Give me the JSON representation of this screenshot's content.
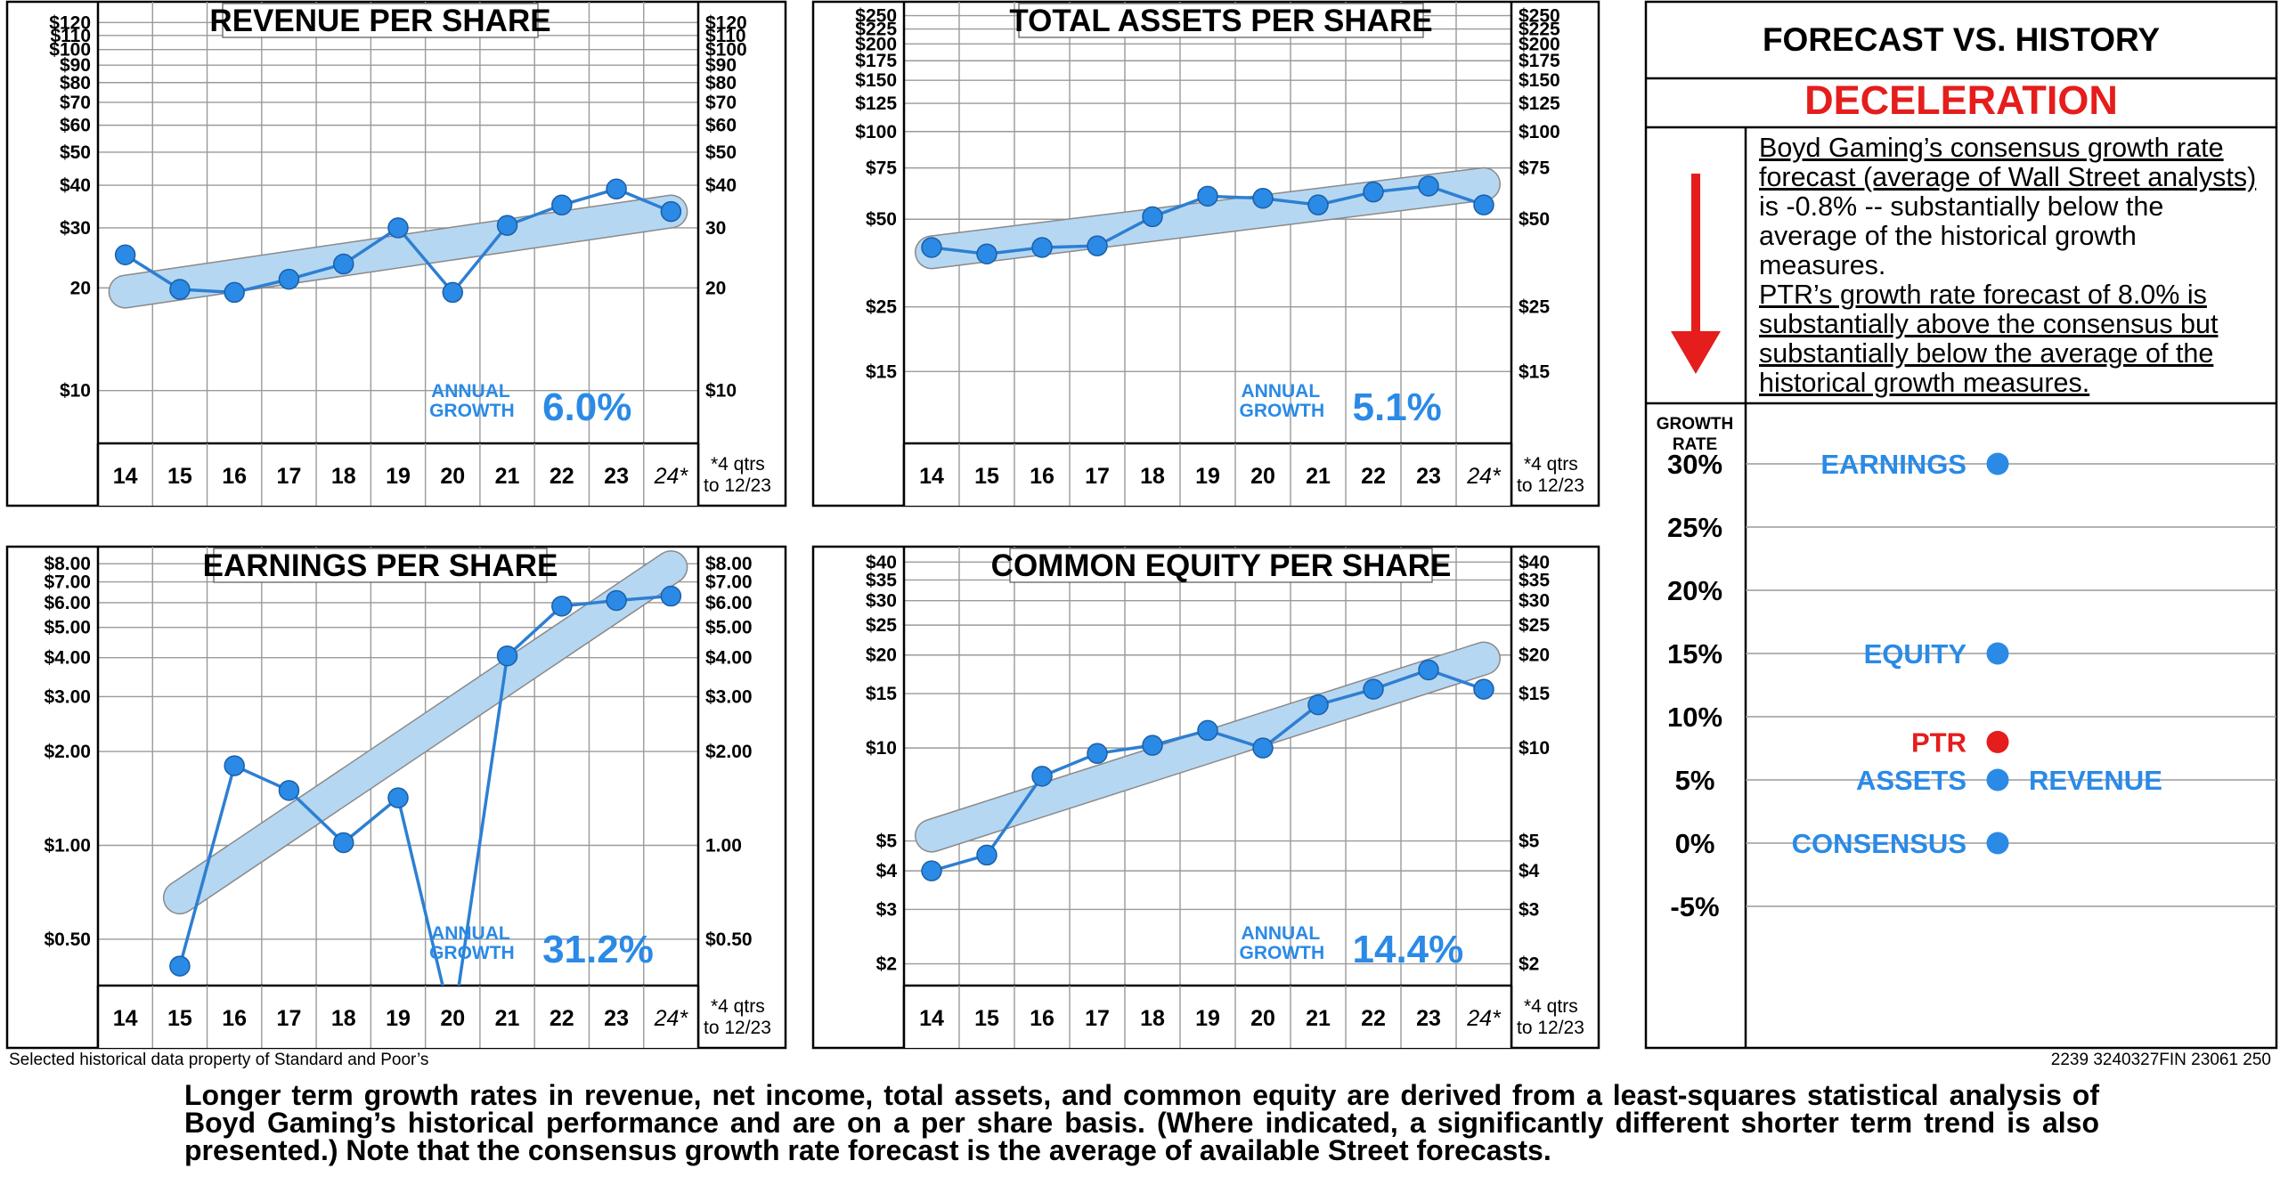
{
  "chart_data": [
    {
      "type": "line",
      "title": "REVENUE PER SHARE",
      "y_scale": "log",
      "x": [
        "14",
        "15",
        "16",
        "17",
        "18",
        "19",
        "20",
        "21",
        "22",
        "23",
        "24*"
      ],
      "values": [
        25.0,
        19.8,
        19.4,
        21.2,
        23.5,
        30.0,
        19.4,
        30.5,
        35.0,
        39.0,
        33.5
      ],
      "trend": [
        19.5,
        33.5
      ],
      "growth_label": "ANNUAL GROWTH",
      "growth_label_lines": [
        "ANNUAL",
        "GROWTH"
      ],
      "growth_value": "6.0%",
      "ylim": [
        7,
        130
      ],
      "ticks": [
        {
          "v": 120,
          "l": "$120"
        },
        {
          "v": 110,
          "l": "$110"
        },
        {
          "v": 100,
          "l": "$100"
        },
        {
          "v": 90,
          "l": "$90"
        },
        {
          "v": 80,
          "l": "$80"
        },
        {
          "v": 70,
          "l": "$70"
        },
        {
          "v": 60,
          "l": "$60"
        },
        {
          "v": 50,
          "l": "$50"
        },
        {
          "v": 40,
          "l": "$40"
        },
        {
          "v": 30,
          "l": "$30"
        },
        {
          "v": 20,
          "l": "20"
        },
        {
          "v": 10,
          "l": "$10"
        }
      ],
      "right_ticks": [
        {
          "v": 120,
          "l": "$120"
        },
        {
          "v": 110,
          "l": "$110"
        },
        {
          "v": 100,
          "l": "$100"
        },
        {
          "v": 90,
          "l": "$90"
        },
        {
          "v": 80,
          "l": "$80"
        },
        {
          "v": 70,
          "l": "$70"
        },
        {
          "v": 60,
          "l": "$60"
        },
        {
          "v": 50,
          "l": "$50"
        },
        {
          "v": 40,
          "l": "$40"
        },
        {
          "v": 30,
          "l": "30"
        },
        {
          "v": 20,
          "l": "20"
        },
        {
          "v": 10,
          "l": "$10"
        }
      ],
      "note_lines": [
        "*4 qtrs",
        "to 12/23"
      ],
      "grid": true
    },
    {
      "type": "line",
      "title": "TOTAL ASSETS PER SHARE",
      "y_scale": "log",
      "x": [
        "14",
        "15",
        "16",
        "17",
        "18",
        "19",
        "20",
        "21",
        "22",
        "23",
        "24*"
      ],
      "values": [
        40.0,
        38.0,
        40.0,
        40.5,
        51.0,
        60.0,
        59.0,
        56.0,
        62.0,
        65.0,
        56.0
      ],
      "trend": [
        38.5,
        66.0
      ],
      "growth_label": "ANNUAL GROWTH",
      "growth_label_lines": [
        "ANNUAL",
        "GROWTH"
      ],
      "growth_value": "5.1%",
      "ylim": [
        8.5,
        260
      ],
      "ticks": [
        {
          "v": 250,
          "l": "$250"
        },
        {
          "v": 225,
          "l": "$225"
        },
        {
          "v": 200,
          "l": "$200"
        },
        {
          "v": 175,
          "l": "$175"
        },
        {
          "v": 150,
          "l": "$150"
        },
        {
          "v": 125,
          "l": "$125"
        },
        {
          "v": 100,
          "l": "$100"
        },
        {
          "v": 75,
          "l": "$75"
        },
        {
          "v": 50,
          "l": "$50"
        },
        {
          "v": 25,
          "l": "$25"
        },
        {
          "v": 15,
          "l": "$15"
        }
      ],
      "right_ticks": [
        {
          "v": 250,
          "l": "$250"
        },
        {
          "v": 225,
          "l": "$225"
        },
        {
          "v": 200,
          "l": "$200"
        },
        {
          "v": 175,
          "l": "$175"
        },
        {
          "v": 150,
          "l": "$150"
        },
        {
          "v": 125,
          "l": "$125"
        },
        {
          "v": 100,
          "l": "$100"
        },
        {
          "v": 75,
          "l": "$75"
        },
        {
          "v": 50,
          "l": "$50"
        },
        {
          "v": 25,
          "l": "$25"
        },
        {
          "v": 15,
          "l": "$15"
        }
      ],
      "note_lines": [
        "*4 qtrs",
        "to 12/23"
      ],
      "grid": true
    },
    {
      "type": "line",
      "title": "EARNINGS PER SHARE",
      "y_scale": "log",
      "x": [
        "14",
        "15",
        "16",
        "17",
        "18",
        "19",
        "20",
        "21",
        "22",
        "23",
        "24*"
      ],
      "values": [
        null,
        0.41,
        1.8,
        1.5,
        1.02,
        1.42,
        0.26,
        4.05,
        5.85,
        6.1,
        6.3
      ],
      "trend": [
        0.68,
        7.8
      ],
      "growth_label": "ANNUAL GROWTH",
      "growth_label_lines": [
        "ANNUAL",
        "GROWTH"
      ],
      "growth_value": "31.2%",
      "ylim": [
        0.355,
        8.5
      ],
      "ticks": [
        {
          "v": 8,
          "l": "$8.00"
        },
        {
          "v": 7,
          "l": "$7.00"
        },
        {
          "v": 6,
          "l": "$6.00"
        },
        {
          "v": 5,
          "l": "$5.00"
        },
        {
          "v": 4,
          "l": "$4.00"
        },
        {
          "v": 3,
          "l": "$3.00"
        },
        {
          "v": 2,
          "l": "$2.00"
        },
        {
          "v": 1,
          "l": "$1.00"
        },
        {
          "v": 0.5,
          "l": "$0.50"
        }
      ],
      "right_ticks": [
        {
          "v": 8,
          "l": "$8.00"
        },
        {
          "v": 7,
          "l": "$7.00"
        },
        {
          "v": 6,
          "l": "$6.00"
        },
        {
          "v": 5,
          "l": "$5.00"
        },
        {
          "v": 4,
          "l": "$4.00"
        },
        {
          "v": 3,
          "l": "$3.00"
        },
        {
          "v": 2,
          "l": "$2.00"
        },
        {
          "v": 1,
          "l": "1.00"
        },
        {
          "v": 0.5,
          "l": "$0.50"
        }
      ],
      "note_lines": [
        "*4 qtrs",
        "to 12/23"
      ],
      "grid": true
    },
    {
      "type": "line",
      "title": "COMMON EQUITY PER SHARE",
      "y_scale": "log",
      "x": [
        "14",
        "15",
        "16",
        "17",
        "18",
        "19",
        "20",
        "21",
        "22",
        "23",
        "24*"
      ],
      "values": [
        4.0,
        4.5,
        8.1,
        9.6,
        10.2,
        11.4,
        10.0,
        13.8,
        15.5,
        17.9,
        15.5
      ],
      "trend": [
        5.2,
        19.5
      ],
      "growth_label": "ANNUAL GROWTH",
      "growth_label_lines": [
        "ANNUAL",
        "GROWTH"
      ],
      "growth_value": "14.4%",
      "ylim": [
        1.7,
        42
      ],
      "ticks": [
        {
          "v": 40,
          "l": "$40"
        },
        {
          "v": 35,
          "l": "$35"
        },
        {
          "v": 30,
          "l": "$30"
        },
        {
          "v": 25,
          "l": "$25"
        },
        {
          "v": 20,
          "l": "$20"
        },
        {
          "v": 15,
          "l": "$15"
        },
        {
          "v": 10,
          "l": "$10"
        },
        {
          "v": 5,
          "l": "$5"
        },
        {
          "v": 4,
          "l": "$4"
        },
        {
          "v": 3,
          "l": "$3"
        },
        {
          "v": 2,
          "l": "$2"
        }
      ],
      "right_ticks": [
        {
          "v": 40,
          "l": "$40"
        },
        {
          "v": 35,
          "l": "$35"
        },
        {
          "v": 30,
          "l": "$30"
        },
        {
          "v": 25,
          "l": "$25"
        },
        {
          "v": 20,
          "l": "$20"
        },
        {
          "v": 15,
          "l": "$15"
        },
        {
          "v": 10,
          "l": "$10"
        },
        {
          "v": 5,
          "l": "$5"
        },
        {
          "v": 4,
          "l": "$4"
        },
        {
          "v": 3,
          "l": "$3"
        },
        {
          "v": 2,
          "l": "$2"
        }
      ],
      "note_lines": [
        "*4 qtrs",
        "to 12/23"
      ],
      "grid": true
    },
    {
      "type": "scatter",
      "title": "FORECAST VS. HISTORY",
      "subtitle": "DECELERATION",
      "ylabel": "GROWTH RATE",
      "ylabel_lines": [
        "GROWTH",
        "RATE"
      ],
      "y_ticks": [
        {
          "v": 30,
          "l": "30%"
        },
        {
          "v": 25,
          "l": "25%"
        },
        {
          "v": 20,
          "l": "20%"
        },
        {
          "v": 15,
          "l": "15%"
        },
        {
          "v": 10,
          "l": "10%"
        },
        {
          "v": 5,
          "l": "5%"
        },
        {
          "v": 0,
          "l": "0%"
        },
        {
          "v": -5,
          "l": "-5%"
        }
      ],
      "points": [
        {
          "label": "EARNINGS",
          "value": 31.2,
          "label_side": "left",
          "color": "#2a8ae6"
        },
        {
          "label": "EQUITY",
          "value": 14.4,
          "label_side": "left",
          "color": "#2a8ae6"
        },
        {
          "label": "PTR",
          "value": 8.0,
          "label_side": "left",
          "color": "#e51d1d"
        },
        {
          "label": "ASSETS",
          "value": 5.1,
          "label_side": "left",
          "color": "#2a8ae6"
        },
        {
          "label": "REVENUE",
          "value": 6.0,
          "label_side": "right",
          "color": "#2a8ae6"
        },
        {
          "label": "CONSENSUS",
          "value": -0.8,
          "label_side": "left",
          "color": "#2a8ae6"
        }
      ]
    }
  ],
  "forecast_text": {
    "part1": "Boyd Gaming’s consensus growth rate forecast (average of Wall Street analysts)",
    "part2": " is -0.8%  -- substantially below the average of the historical growth measures.",
    "part3": "PTR’s growth rate forecast of 8.0% is substantially above the consensus but substantially below the average of the historical growth measures."
  },
  "footer": {
    "left": "Selected historical data property of Standard and Poor’s",
    "right": "2239 3240327FIN 23061 250"
  },
  "bottom_text": "Longer term growth rates in revenue, net income, total assets, and common equity are derived from a least-squares  statistical analysis of Boyd Gaming’s historical performance and are on a per share basis. (Where indicated, a significantly different shorter term trend is also presented.) Note that the consensus growth rate forecast is the average of available Street forecasts.",
  "colors": {
    "line": "#2d7fd2",
    "dot": "#2a8ae6",
    "band": "#b6d7f2",
    "red": "#e51d1d",
    "grid": "#9a9a9a"
  }
}
